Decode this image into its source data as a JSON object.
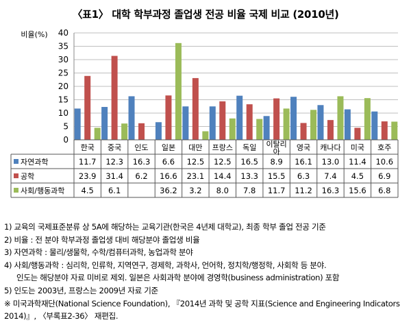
{
  "colors": {
    "science": "#4F81BD",
    "engineering": "#C0504D",
    "social": "#9BBB59",
    "grid": "#bfbfbf"
  },
  "chart_data": {
    "type": "bar",
    "title": "〈표1〉 대학 학부과정 졸업생 전공 비율 국제 비교 (2010년)",
    "ylabel": "비율(%)",
    "ylim": [
      0,
      40
    ],
    "yticks": [
      0,
      5,
      10,
      15,
      20,
      25,
      30,
      35,
      40
    ],
    "grid": true,
    "legend": "table-left",
    "categories": [
      "한국",
      "중국",
      "인도",
      "일본",
      "대만",
      "프랑스",
      "독일",
      "이탈리아",
      "영국",
      "캐나다",
      "미국",
      "호주"
    ],
    "series": [
      {
        "name": "자연과학",
        "values": [
          11.7,
          12.3,
          16.3,
          6.6,
          12.5,
          12.5,
          16.5,
          8.9,
          16.1,
          13.0,
          11.4,
          10.6
        ],
        "labels": [
          "11.7",
          "12.3",
          "16.3",
          "6.6",
          "12.5",
          "12.5",
          "16.5",
          "8.9",
          "16.1",
          "13.0",
          "11.4",
          "10.6"
        ]
      },
      {
        "name": "공학",
        "values": [
          23.9,
          31.4,
          6.2,
          16.6,
          23.1,
          14.4,
          13.3,
          15.5,
          6.3,
          7.4,
          4.5,
          6.9
        ],
        "labels": [
          "23.9",
          "31.4",
          "6.2",
          "16.6",
          "23.1",
          "14.4",
          "13.3",
          "15.5",
          "6.3",
          "7.4",
          "4.5",
          "6.9"
        ]
      },
      {
        "name": "사회/행동과학",
        "values": [
          4.5,
          6.1,
          null,
          36.2,
          3.2,
          8.0,
          7.8,
          11.7,
          11.2,
          16.3,
          15.6,
          6.8
        ],
        "labels": [
          "4.5",
          "6.1",
          "",
          "36.2",
          "3.2",
          "8.0",
          "7.8",
          "11.7",
          "11.2",
          "16.3",
          "15.6",
          "6.8"
        ]
      }
    ]
  },
  "notes": [
    "1) 교육의 국제표준분류 상 5A에 해당하는 교육기관(한국은 4년제 대학교), 최종 학부 졸업 전공 기준",
    "2) 비율 : 전 분야 학부과정 졸업생 대비 해당분야 졸업생 비율",
    "3) 자연과학 : 물리/생물학, 수학/컴퓨터과학, 농업과학 분야",
    "4) 사회/행동과학 : 심리학, 인류학, 지역연구, 경제학, 과학사, 언어학, 정치학/행정학, 사회학 등 분야.",
    "인도는 해당분야 자료 미비로 제외. 일본은 사회과학 분야에 경영학(business administration) 포함",
    "5) 인도는 2003년, 프랑스는 2009년 자료 기준",
    "※  미국과학재단(National Science Foundation), 『2014년 과학 및 공학 지표(Science and Engineering Indicators 2014)』, 〈부록표2-36〉 재편집."
  ]
}
